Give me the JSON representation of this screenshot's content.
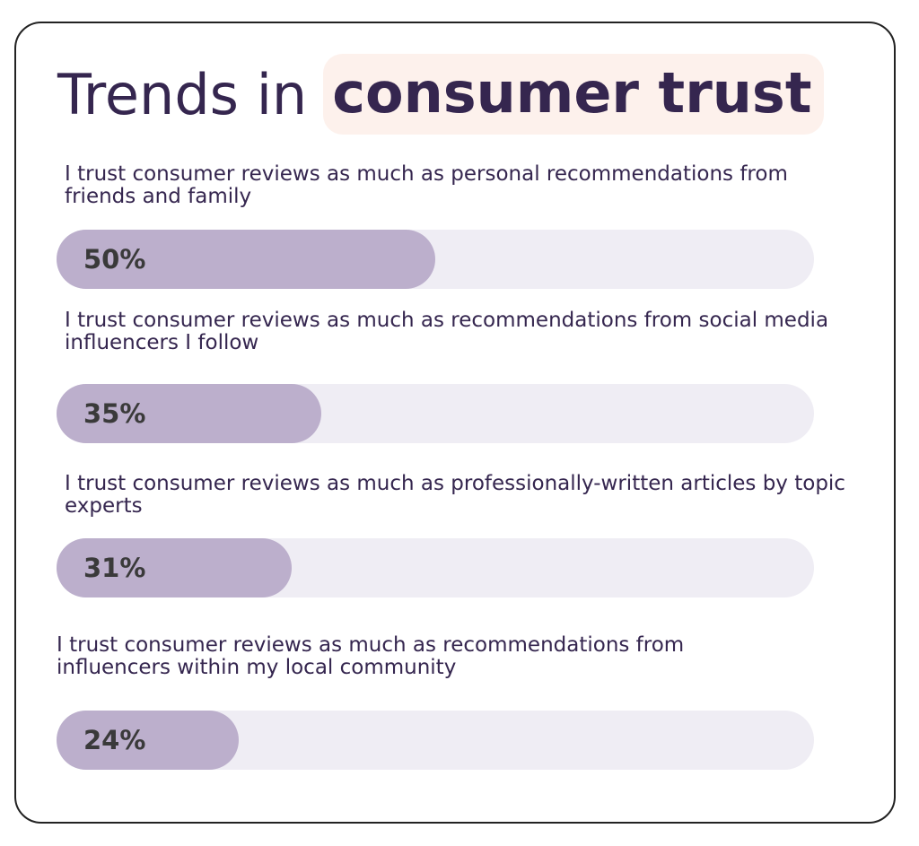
{
  "chart_data": {
    "type": "bar",
    "orientation": "horizontal",
    "title": "Trends in",
    "title_highlight": "consumer trust",
    "categories": [
      "I trust consumer reviews as much as personal recommendations from friends and family",
      "I trust consumer reviews as much as recommendations from social media influencers I follow",
      "I trust consumer reviews as much as professionally-written articles by topic experts",
      "I trust consumer reviews as much as recommendations from influencers within my local community"
    ],
    "values": [
      50,
      35,
      31,
      24
    ],
    "value_labels": [
      "50%",
      "35%",
      "31%",
      "24%"
    ],
    "color": "#bcafcc",
    "xlim": [
      0,
      100
    ]
  }
}
